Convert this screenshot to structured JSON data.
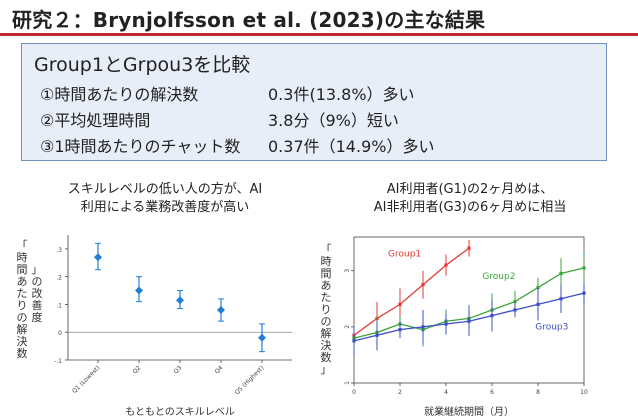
{
  "slide": {
    "title": "研究２：Brynjolfsson et al. (2023)の主な結果",
    "colors": {
      "accent_rule": "#c0282d",
      "box_fill": "#e8eef8",
      "box_border": "#6f8fbf"
    }
  },
  "summary": {
    "heading": "Group1とGrpou3を比較",
    "rows": [
      {
        "label": "①時間あたりの解決数",
        "value": "0.3件(13.8%）多い"
      },
      {
        "label": "②平均処理時間",
        "value": "3.8分（9%）短い"
      },
      {
        "label": "③1時間あたりのチャット数",
        "value": "0.37件（14.9%）多い"
      }
    ]
  },
  "left_chart": {
    "caption_line1": "スキルレベルの低い人の方が、AI",
    "caption_line2": "利用による業務改善度が高い"
  },
  "right_chart": {
    "caption_line1": "AI利用者(G1)の2ヶ月めは、",
    "caption_line2": "AI非利用者(G3)の6ヶ月めに相当"
  },
  "chart_data": [
    {
      "type": "scatter",
      "categories": [
        "Q1 (Lowest)",
        "Q2",
        "Q3",
        "Q4",
        "Q5 (Highest)"
      ],
      "values": [
        0.27,
        0.15,
        0.115,
        0.08,
        -0.02
      ],
      "error_low": [
        0.225,
        0.11,
        0.085,
        0.04,
        -0.07
      ],
      "error_high": [
        0.32,
        0.2,
        0.15,
        0.12,
        0.03
      ],
      "ylabel": "「時間あたりの解決数」の改善度",
      "xlabel": "もともとのスキルレベル",
      "ylim": [
        -0.1,
        0.35
      ],
      "yticks": [
        -0.1,
        0,
        0.1,
        0.2,
        0.3
      ],
      "ytick_labels": [
        "-.1",
        "0",
        ".1",
        ".2",
        ".3"
      ],
      "reference_line": 0,
      "color": "#1f7fd6"
    },
    {
      "type": "line",
      "xlabel": "就業継続期間（月）",
      "ylabel": "「時間あたりの解決数」",
      "xlim": [
        0,
        10
      ],
      "ylim": [
        1,
        3.6
      ],
      "xticks": [
        0,
        2,
        4,
        6,
        8,
        10
      ],
      "yticks": [
        1,
        2,
        3
      ],
      "series": [
        {
          "name": "Group1",
          "color": "#e53935",
          "x": [
            0,
            1,
            2,
            3,
            4,
            5
          ],
          "y": [
            1.85,
            2.15,
            2.4,
            2.75,
            3.1,
            3.4
          ]
        },
        {
          "name": "Group2",
          "color": "#3aa63a",
          "x": [
            0,
            1,
            2,
            3,
            4,
            5,
            6,
            7,
            8,
            9,
            10
          ],
          "y": [
            1.8,
            1.9,
            2.05,
            1.95,
            2.1,
            2.15,
            2.3,
            2.45,
            2.7,
            2.95,
            3.05
          ]
        },
        {
          "name": "Group3",
          "color": "#3b4fc9",
          "x": [
            0,
            1,
            2,
            3,
            4,
            5,
            6,
            7,
            8,
            9,
            10
          ],
          "y": [
            1.75,
            1.85,
            1.95,
            2.0,
            2.05,
            2.1,
            2.2,
            2.3,
            2.4,
            2.5,
            2.6
          ]
        }
      ]
    }
  ]
}
